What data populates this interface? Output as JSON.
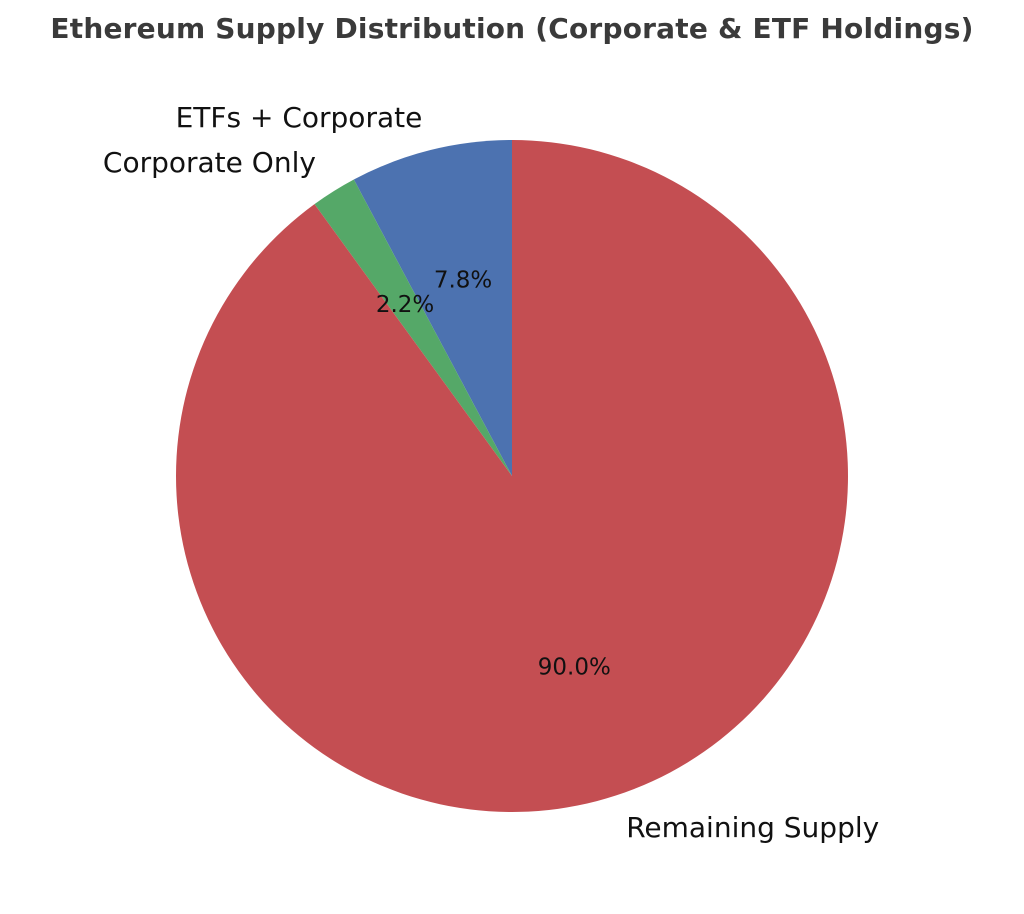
{
  "chart_data": {
    "type": "pie",
    "title": "Ethereum Supply Distribution (Corporate & ETF Holdings)",
    "start_angle_deg": 90,
    "direction": "counterclockwise",
    "slices": [
      {
        "label": "ETFs + Corporate",
        "value": 7.8,
        "pct_label": "7.8%",
        "color": "#4c72b0"
      },
      {
        "label": "Corporate Only",
        "value": 2.2,
        "pct_label": "2.2%",
        "color": "#55a868"
      },
      {
        "label": "Remaining Supply",
        "value": 90.0,
        "pct_label": "90.0%",
        "color": "#c44e52"
      }
    ]
  }
}
